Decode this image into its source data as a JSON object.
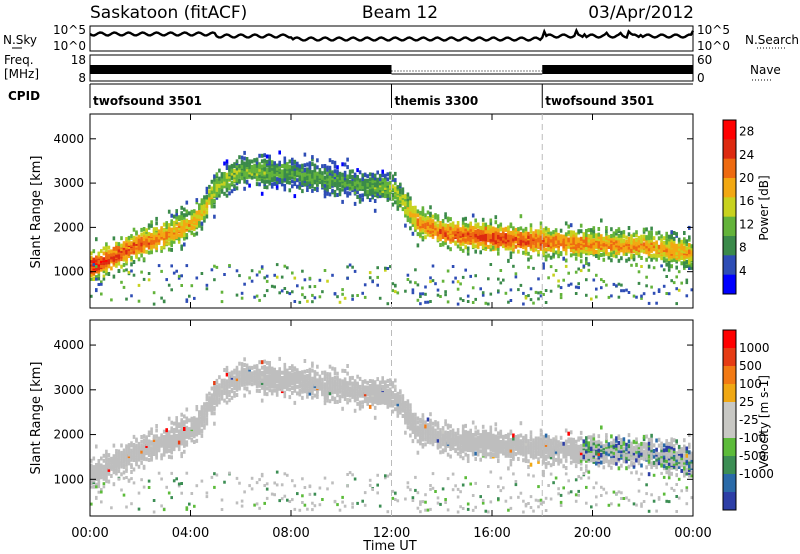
{
  "header": {
    "station": "Saskatoon (fitACF)",
    "beam": "Beam 12",
    "date": "03/Apr/2012"
  },
  "noise_panel": {
    "left_label": "N.Sky",
    "right_label": "N.Search",
    "left_ticks": [
      "10^5",
      "10^0"
    ],
    "right_ticks": [
      "10^5",
      "10^0"
    ]
  },
  "freq_panel": {
    "left_label_1": "Freq.",
    "left_label_2": "[MHz]",
    "right_label": "Nave",
    "left_ticks": [
      "18",
      "8"
    ],
    "right_ticks": [
      "60",
      "0"
    ]
  },
  "cpid": {
    "label": "CPID",
    "segments": [
      {
        "name": "twofsound 3501",
        "start_h": 0,
        "end_h": 12
      },
      {
        "name": "themis 3300",
        "start_h": 12,
        "end_h": 18
      },
      {
        "name": "twofsound 3501",
        "start_h": 18,
        "end_h": 24
      }
    ]
  },
  "colors": {
    "power_scale": [
      "#0000ff",
      "#2e4db5",
      "#3b8a4a",
      "#63b33a",
      "#c8d21e",
      "#f2a812",
      "#ee6a10",
      "#dd2a10",
      "#ff0000"
    ],
    "velocity_scale": [
      "#2d3ea6",
      "#2a6aa8",
      "#3c8e54",
      "#5cbb3a",
      "#c8c8c4",
      "#c8c8c4",
      "#f0a814",
      "#f27a14",
      "#e63c14",
      "#ff0000"
    ],
    "ground_scatter": "#bebebe"
  },
  "chart_data": [
    {
      "type": "heatmap",
      "panel": "power",
      "xlabel": "",
      "ylabel": "Slant Range [km]",
      "x_ticks": [
        "00:00",
        "04:00",
        "08:00",
        "12:00",
        "16:00",
        "20:00",
        "00:00"
      ],
      "xlim_hours": [
        0,
        24
      ],
      "y_ticks": [
        1000,
        2000,
        3000,
        4000
      ],
      "ylim": [
        180,
        4560
      ],
      "colorbar": {
        "label": "Power [dB]",
        "ticks": [
          4,
          8,
          12,
          16,
          20,
          24,
          28
        ],
        "range": [
          0,
          30
        ]
      },
      "scatter_band_centroid": {
        "x_hours": [
          0,
          1,
          2,
          3,
          4,
          4.5,
          5,
          6,
          8,
          10,
          11,
          12,
          13,
          14,
          16,
          18,
          20,
          22,
          24
        ],
        "y_km": [
          1150,
          1400,
          1650,
          1850,
          2100,
          2450,
          2950,
          3300,
          3250,
          3050,
          2950,
          2900,
          2150,
          1900,
          1800,
          1700,
          1650,
          1600,
          1450
        ],
        "peak_power_db": [
          26,
          24,
          22,
          20,
          18,
          16,
          14,
          12,
          10,
          10,
          10,
          12,
          20,
          22,
          24,
          22,
          20,
          20,
          18
        ]
      }
    },
    {
      "type": "heatmap",
      "panel": "velocity",
      "xlabel": "Time UT",
      "ylabel": "Slant Range [km]",
      "x_ticks": [
        "00:00",
        "04:00",
        "08:00",
        "12:00",
        "16:00",
        "20:00",
        "00:00"
      ],
      "xlim_hours": [
        0,
        24
      ],
      "y_ticks": [
        1000,
        2000,
        3000,
        4000
      ],
      "ylim": [
        180,
        4560
      ],
      "colorbar": {
        "label": "Velocity [m s-1]",
        "ticks": [
          1000,
          500,
          100,
          25,
          -25,
          -100,
          -500,
          -1000
        ]
      }
    }
  ]
}
